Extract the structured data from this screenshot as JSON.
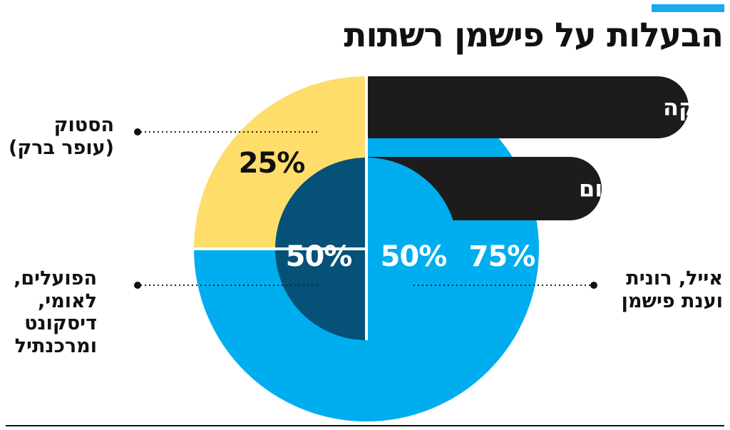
{
  "title": "הבעלות על פישמן רשתות",
  "colors": {
    "accent": "#1aa9ec",
    "outer_fishman": "#00adef",
    "outer_stock": "#fedd6a",
    "inner_fishman": "#00adef",
    "inner_banks": "#055177",
    "pill": "#1e1b1c"
  },
  "chart_data": [
    {
      "type": "pie",
      "ring": "outer",
      "name": "אחרי העסקה",
      "slices": [
        {
          "label": "אייל, רונית וענת פישמן",
          "value": 75,
          "value_label": "75%"
        },
        {
          "label": "הסטוק (עופר ברק)",
          "value": 25,
          "value_label": "25%"
        }
      ]
    },
    {
      "type": "pie",
      "ring": "inner",
      "name": "כיום",
      "slices": [
        {
          "label": "אייל, רונית וענת פישמן",
          "value": 50,
          "value_label": "50%"
        },
        {
          "label": "הפועלים, לאומי, דיסקונט ומרכנתיל",
          "value": 50,
          "value_label": "50%"
        }
      ]
    }
  ],
  "labels": {
    "stock": [
      "הסטוק",
      "(עופר ברק)"
    ],
    "fishman": [
      "אייל, רונית",
      "וענת פישמן"
    ],
    "banks": [
      "הפועלים,",
      "לאומי,",
      "דיסקונט",
      "ומרכנתיל"
    ]
  }
}
